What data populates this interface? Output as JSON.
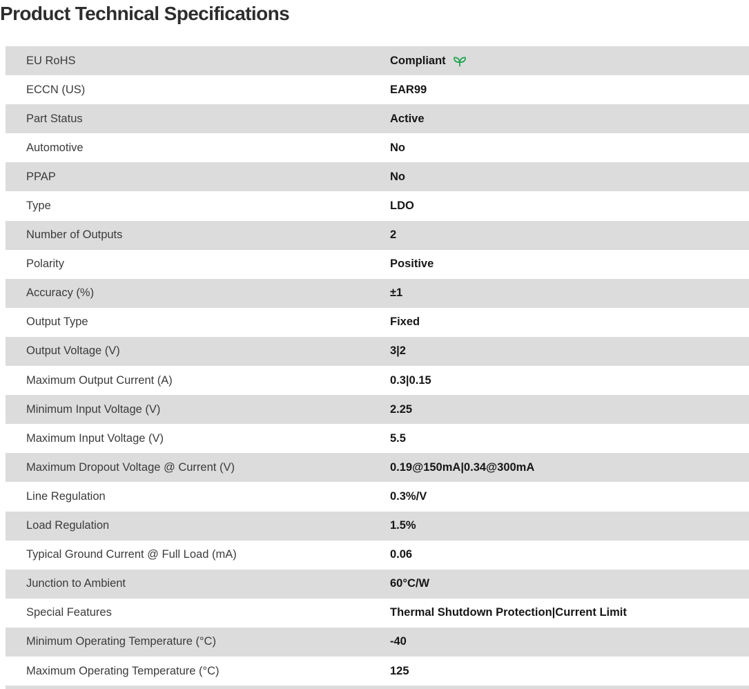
{
  "page": {
    "title": "Product Technical Specifications"
  },
  "colors": {
    "row_alt_bg": "#dcdcdc",
    "row_bg": "#ffffff",
    "title_text": "#2d2d2d",
    "label_text": "#3b3b3b",
    "value_text": "#161616",
    "leaf_green": "#18a24c"
  },
  "table": {
    "rows": [
      {
        "label": "EU RoHS",
        "value": "Compliant",
        "icon": "leaf-icon"
      },
      {
        "label": "ECCN (US)",
        "value": "EAR99"
      },
      {
        "label": "Part Status",
        "value": "Active"
      },
      {
        "label": "Automotive",
        "value": "No"
      },
      {
        "label": "PPAP",
        "value": "No"
      },
      {
        "label": "Type",
        "value": "LDO"
      },
      {
        "label": "Number of Outputs",
        "value": "2"
      },
      {
        "label": "Polarity",
        "value": "Positive"
      },
      {
        "label": "Accuracy (%)",
        "value": "±1"
      },
      {
        "label": "Output Type",
        "value": "Fixed"
      },
      {
        "label": "Output Voltage (V)",
        "value": "3|2"
      },
      {
        "label": "Maximum Output Current (A)",
        "value": "0.3|0.15"
      },
      {
        "label": "Minimum Input Voltage (V)",
        "value": "2.25"
      },
      {
        "label": "Maximum Input Voltage (V)",
        "value": "5.5"
      },
      {
        "label": "Maximum Dropout Voltage @ Current (V)",
        "value": "0.19@150mA|0.34@300mA"
      },
      {
        "label": "Line Regulation",
        "value": "0.3%/V"
      },
      {
        "label": "Load Regulation",
        "value": "1.5%"
      },
      {
        "label": "Typical Ground Current @ Full Load (mA)",
        "value": "0.06"
      },
      {
        "label": "Junction to Ambient",
        "value": "60°C/W"
      },
      {
        "label": "Special Features",
        "value": "Thermal Shutdown Protection|Current Limit"
      },
      {
        "label": "Minimum Operating Temperature (°C)",
        "value": "-40"
      },
      {
        "label": "Maximum Operating Temperature (°C)",
        "value": "125"
      }
    ]
  }
}
